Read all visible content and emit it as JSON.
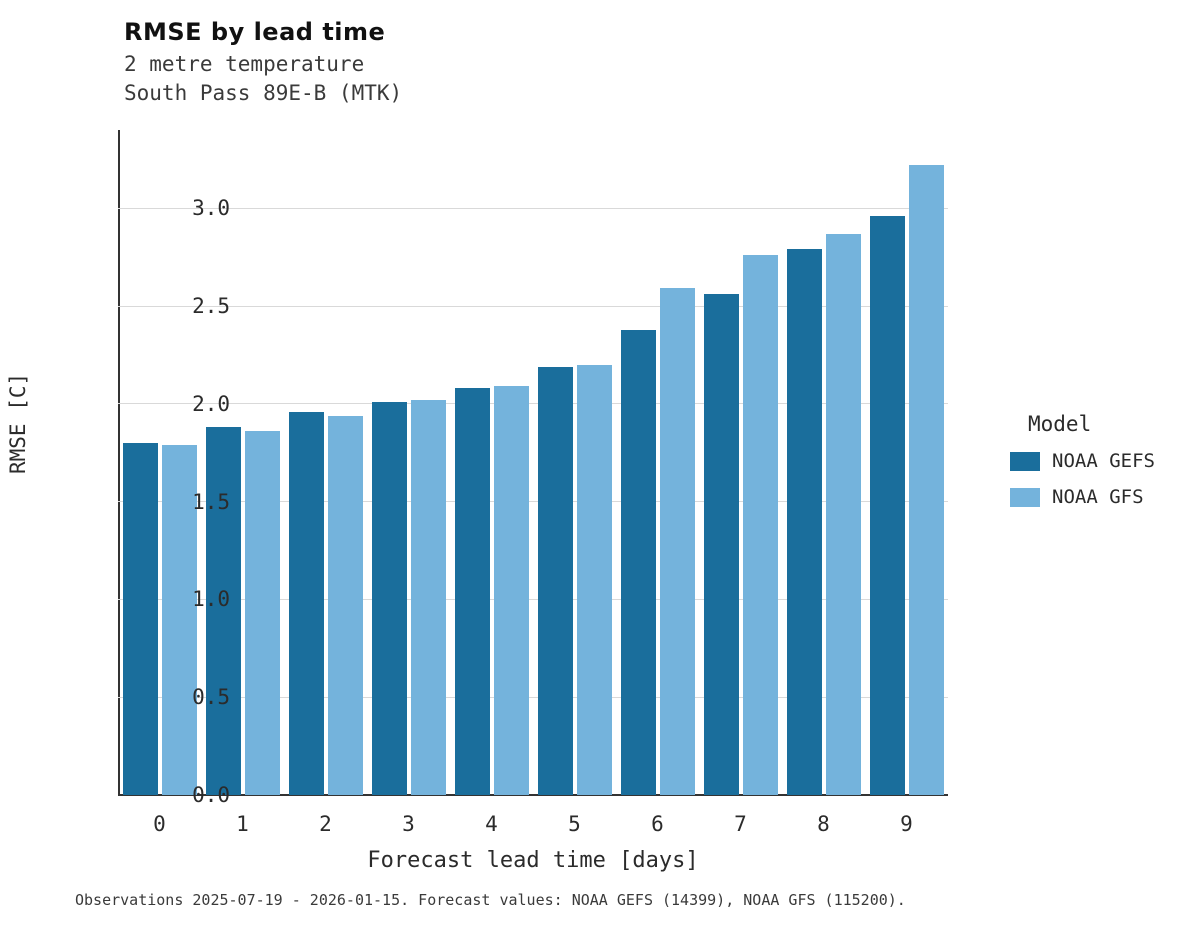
{
  "header": {
    "title": "RMSE by lead time",
    "subtitle1": "2 metre temperature",
    "subtitle2": "South Pass 89E-B (MTK)"
  },
  "caption": "Observations 2025-07-19 - 2026-01-15. Forecast values: NOAA GEFS (14399), NOAA GFS (115200).",
  "legend": {
    "title": "Model",
    "entries": [
      {
        "label": "NOAA GEFS",
        "color": "#1a6e9c"
      },
      {
        "label": "NOAA GFS",
        "color": "#74b3dc"
      }
    ]
  },
  "chart_data": {
    "type": "bar",
    "title": "RMSE by lead time",
    "xlabel": "Forecast lead time [days]",
    "ylabel": "RMSE [C]",
    "categories": [
      "0",
      "1",
      "2",
      "3",
      "4",
      "5",
      "6",
      "7",
      "8",
      "9"
    ],
    "series": [
      {
        "name": "NOAA GEFS",
        "color": "#1a6e9c",
        "values": [
          1.8,
          1.88,
          1.96,
          2.01,
          2.08,
          2.19,
          2.38,
          2.56,
          2.79,
          2.96
        ]
      },
      {
        "name": "NOAA GFS",
        "color": "#74b3dc",
        "values": [
          1.79,
          1.86,
          1.94,
          2.02,
          2.09,
          2.2,
          2.59,
          2.76,
          2.87,
          3.22
        ]
      }
    ],
    "ylim": [
      0,
      3.4
    ],
    "yticks": [
      0.0,
      0.5,
      1.0,
      1.5,
      2.0,
      2.5,
      3.0
    ],
    "grid": "horizontal",
    "legend_position": "right"
  }
}
